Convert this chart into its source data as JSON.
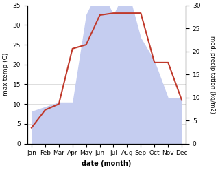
{
  "months": [
    "Jan",
    "Feb",
    "Mar",
    "Apr",
    "May",
    "Jun",
    "Jul",
    "Aug",
    "Sep",
    "Oct",
    "Nov",
    "Dec"
  ],
  "temperature": [
    4,
    8.5,
    10,
    24,
    25,
    32.5,
    33,
    33,
    33,
    20.5,
    20.5,
    11
  ],
  "precipitation": [
    7,
    8,
    9,
    9,
    28,
    34,
    28,
    34,
    23,
    18,
    10,
    10
  ],
  "temp_color": "#c0392b",
  "precip_fill_color": "#c5cdf0",
  "temp_ylim": [
    0,
    35
  ],
  "precip_ylim": [
    0,
    30
  ],
  "temp_yticks": [
    0,
    5,
    10,
    15,
    20,
    25,
    30,
    35
  ],
  "precip_yticks": [
    0,
    5,
    10,
    15,
    20,
    25,
    30
  ],
  "xlabel": "date (month)",
  "ylabel_left": "max temp (C)",
  "ylabel_right": "med. precipitation (kg/m2)",
  "background_color": "#ffffff",
  "grid_color": "#d0d0d0"
}
